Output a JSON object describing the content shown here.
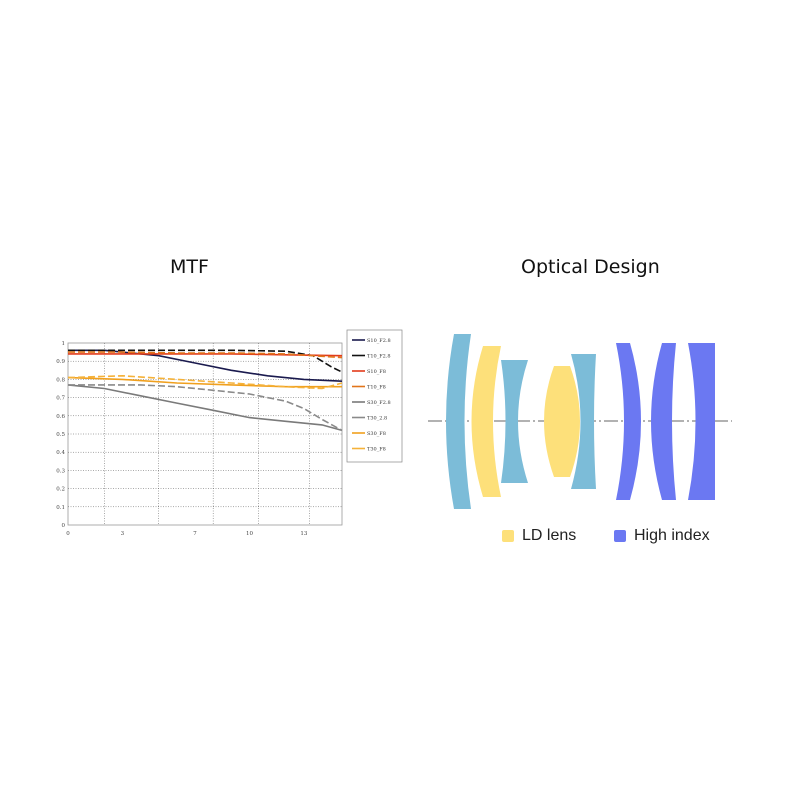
{
  "headings": {
    "mtf": "MTF",
    "optical": "Optical Design"
  },
  "chart_data": {
    "type": "line",
    "title": "MTF",
    "x_ticks": [
      0,
      3,
      7,
      10,
      13
    ],
    "y_ticks": [
      "0",
      "0.1",
      "0.2",
      "0.3",
      "0.4",
      "0.5",
      "0.6",
      "0.7",
      "0.8",
      "0.9",
      "1"
    ],
    "xlim": [
      0,
      15.1
    ],
    "ylim": [
      0,
      1
    ],
    "grid": true,
    "legend_position": "right",
    "series": [
      {
        "name": "S10_F2.8",
        "color": "#1a1a4e",
        "dash": false,
        "x": [
          0,
          2,
          3,
          5,
          7,
          9,
          11,
          13,
          15.1
        ],
        "y": [
          0.96,
          0.96,
          0.95,
          0.93,
          0.89,
          0.85,
          0.82,
          0.8,
          0.79
        ]
      },
      {
        "name": "T10_F2.8",
        "color": "#111111",
        "dash": true,
        "x": [
          0,
          3,
          6,
          9,
          12,
          13.5,
          14.5,
          15.1
        ],
        "y": [
          0.96,
          0.96,
          0.96,
          0.96,
          0.955,
          0.93,
          0.87,
          0.84
        ]
      },
      {
        "name": "S10_F8",
        "color": "#e23b1b",
        "dash": false,
        "x": [
          0,
          3,
          6,
          9,
          12,
          15.1
        ],
        "y": [
          0.94,
          0.94,
          0.94,
          0.94,
          0.935,
          0.93
        ]
      },
      {
        "name": "T10_F8",
        "color": "#e2751b",
        "dash": true,
        "x": [
          0,
          3,
          6,
          9,
          12,
          15.1
        ],
        "y": [
          0.95,
          0.95,
          0.945,
          0.945,
          0.94,
          0.92
        ]
      },
      {
        "name": "S30_F2.8",
        "color": "#7a7a7a",
        "dash": false,
        "x": [
          0,
          2,
          4,
          6,
          8,
          10,
          12,
          14,
          15.1
        ],
        "y": [
          0.77,
          0.75,
          0.71,
          0.67,
          0.63,
          0.59,
          0.57,
          0.55,
          0.52
        ]
      },
      {
        "name": "T30_2.8",
        "color": "#8a8a8a",
        "dash": true,
        "x": [
          0,
          2,
          4,
          6,
          8,
          10,
          12,
          13,
          14,
          15.1
        ],
        "y": [
          0.77,
          0.77,
          0.77,
          0.76,
          0.74,
          0.72,
          0.68,
          0.64,
          0.58,
          0.52
        ]
      },
      {
        "name": "S30_F8",
        "color": "#f0a01e",
        "dash": false,
        "x": [
          0,
          3,
          6,
          9,
          12,
          15.1
        ],
        "y": [
          0.81,
          0.8,
          0.78,
          0.77,
          0.76,
          0.76
        ]
      },
      {
        "name": "T30_F8",
        "color": "#f5b23a",
        "dash": true,
        "x": [
          0,
          3,
          6,
          9,
          12,
          14,
          15.1
        ],
        "y": [
          0.81,
          0.82,
          0.8,
          0.78,
          0.76,
          0.75,
          0.78
        ]
      }
    ]
  },
  "optics": {
    "colors": {
      "ld": "#fde07a",
      "high_index": "#6b78f2",
      "standard": "#7cbcd8"
    },
    "legend": [
      {
        "label": "LD lens",
        "color": "#fde07a"
      },
      {
        "label": "High index",
        "color": "#6b78f2"
      }
    ]
  }
}
